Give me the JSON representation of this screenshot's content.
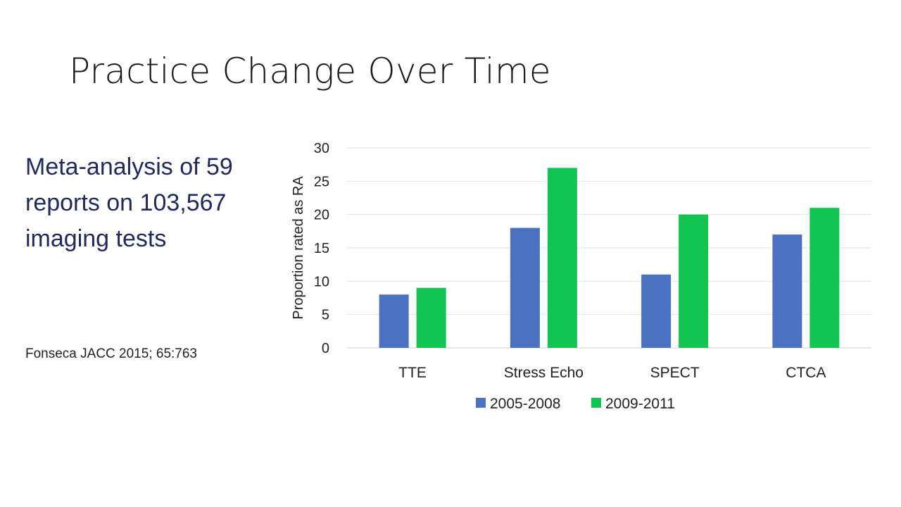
{
  "slide": {
    "title": "Practice Change Over Time",
    "summary_lines": [
      "Meta-analysis of 59",
      "reports on 103,567",
      "imaging tests"
    ],
    "citation": "Fonseca JACC 2015; 65:763"
  },
  "chart_data": {
    "type": "bar",
    "categories": [
      "TTE",
      "Stress Echo",
      "SPECT",
      "CTCA"
    ],
    "series": [
      {
        "name": "2005-2008",
        "color": "#4a72c0",
        "values": [
          8,
          18,
          11,
          17
        ]
      },
      {
        "name": "2009-2011",
        "color": "#12c452",
        "values": [
          9,
          27,
          20,
          21
        ]
      }
    ],
    "ylabel": "Proportion rated as RA",
    "ylim": [
      0,
      30
    ],
    "yticks": [
      0,
      5,
      10,
      15,
      20,
      25,
      30
    ],
    "grid": true,
    "legend": "bottom"
  }
}
